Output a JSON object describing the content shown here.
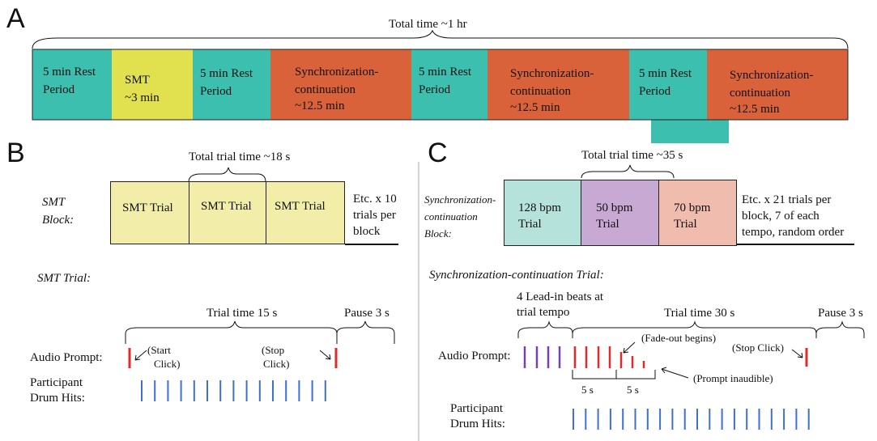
{
  "panels": {
    "a": "A",
    "b": "B",
    "c": "C"
  },
  "colors": {
    "rest": "#3cbfae",
    "smt": "#e1e04f",
    "sync": "#d9623b",
    "smt_trial": "#f2eda8",
    "t128": "#b5e2db",
    "t50": "#c8a9d3",
    "t70": "#efbcae",
    "red": "#e02b2b",
    "blue": "#3f6fcf",
    "purple": "#7b3fa8"
  },
  "a": {
    "total_time": "Total time ~1 hr",
    "rest1_l1": "5 min Rest",
    "rest1_l2": "Period",
    "smt_l1": "SMT",
    "smt_l2": "~3 min",
    "rest2_l1": "5 min Rest",
    "rest2_l2": "Period",
    "sync1_l1": "Synchronization-",
    "sync1_l2": "continuation",
    "sync1_l3": "~12.5 min",
    "rest3_l1": "5 min Rest",
    "rest3_l2": "Period",
    "sync2_l1": "Synchronization-",
    "sync2_l2": "continuation",
    "sync2_l3": "~12.5 min",
    "rest4_l1": "5 min Rest",
    "rest4_l2": "Period",
    "sync3_l1": "Synchronization-",
    "sync3_l2": "continuation",
    "sync3_l3": "~12.5 min"
  },
  "b": {
    "block_label_l1": "SMT",
    "block_label_l2": "Block:",
    "total_trial_time": "Total trial time ~18 s",
    "trial1": "SMT Trial",
    "trial2": "SMT Trial",
    "trial3": "SMT Trial",
    "etc_l1": "Etc. x 10",
    "etc_l2": "trials per",
    "etc_l3": "block",
    "trial_heading": "SMT Trial:",
    "trial_time": "Trial time 15 s",
    "pause": "Pause 3 s",
    "audio_prompt": "Audio Prompt:",
    "start_l1": "(Start",
    "start_l2": "Click)",
    "stop_l1": "(Stop",
    "stop_l2": "Click)",
    "drum_l1": "Participant",
    "drum_l2": "Drum Hits:"
  },
  "c": {
    "block_label_l1": "Synchronization-",
    "block_label_l2": "continuation",
    "block_label_l3": "Block:",
    "total_trial_time": "Total trial time ~35 s",
    "t1_l1": "128 bpm",
    "t1_l2": "Trial",
    "t2_l1": "50 bpm",
    "t2_l2": "Trial",
    "t3_l1": "70 bpm",
    "t3_l2": "Trial",
    "etc_l1": "Etc. x 21 trials per",
    "etc_l2": "block, 7 of each",
    "etc_l3": "tempo, random order",
    "trial_heading": "Synchronization-continuation Trial:",
    "leadin_l1": "4 Lead-in beats at",
    "leadin_l2": "trial tempo",
    "trial_time": "Trial time 30 s",
    "pause": "Pause 3 s",
    "fade": "(Fade-out begins)",
    "stop": "(Stop Click)",
    "inaudible": "(Prompt inaudible)",
    "audio_prompt": "Audio Prompt:",
    "five1": "5 s",
    "five2": "5 s",
    "drum_l1": "Participant",
    "drum_l2": "Drum Hits:"
  }
}
